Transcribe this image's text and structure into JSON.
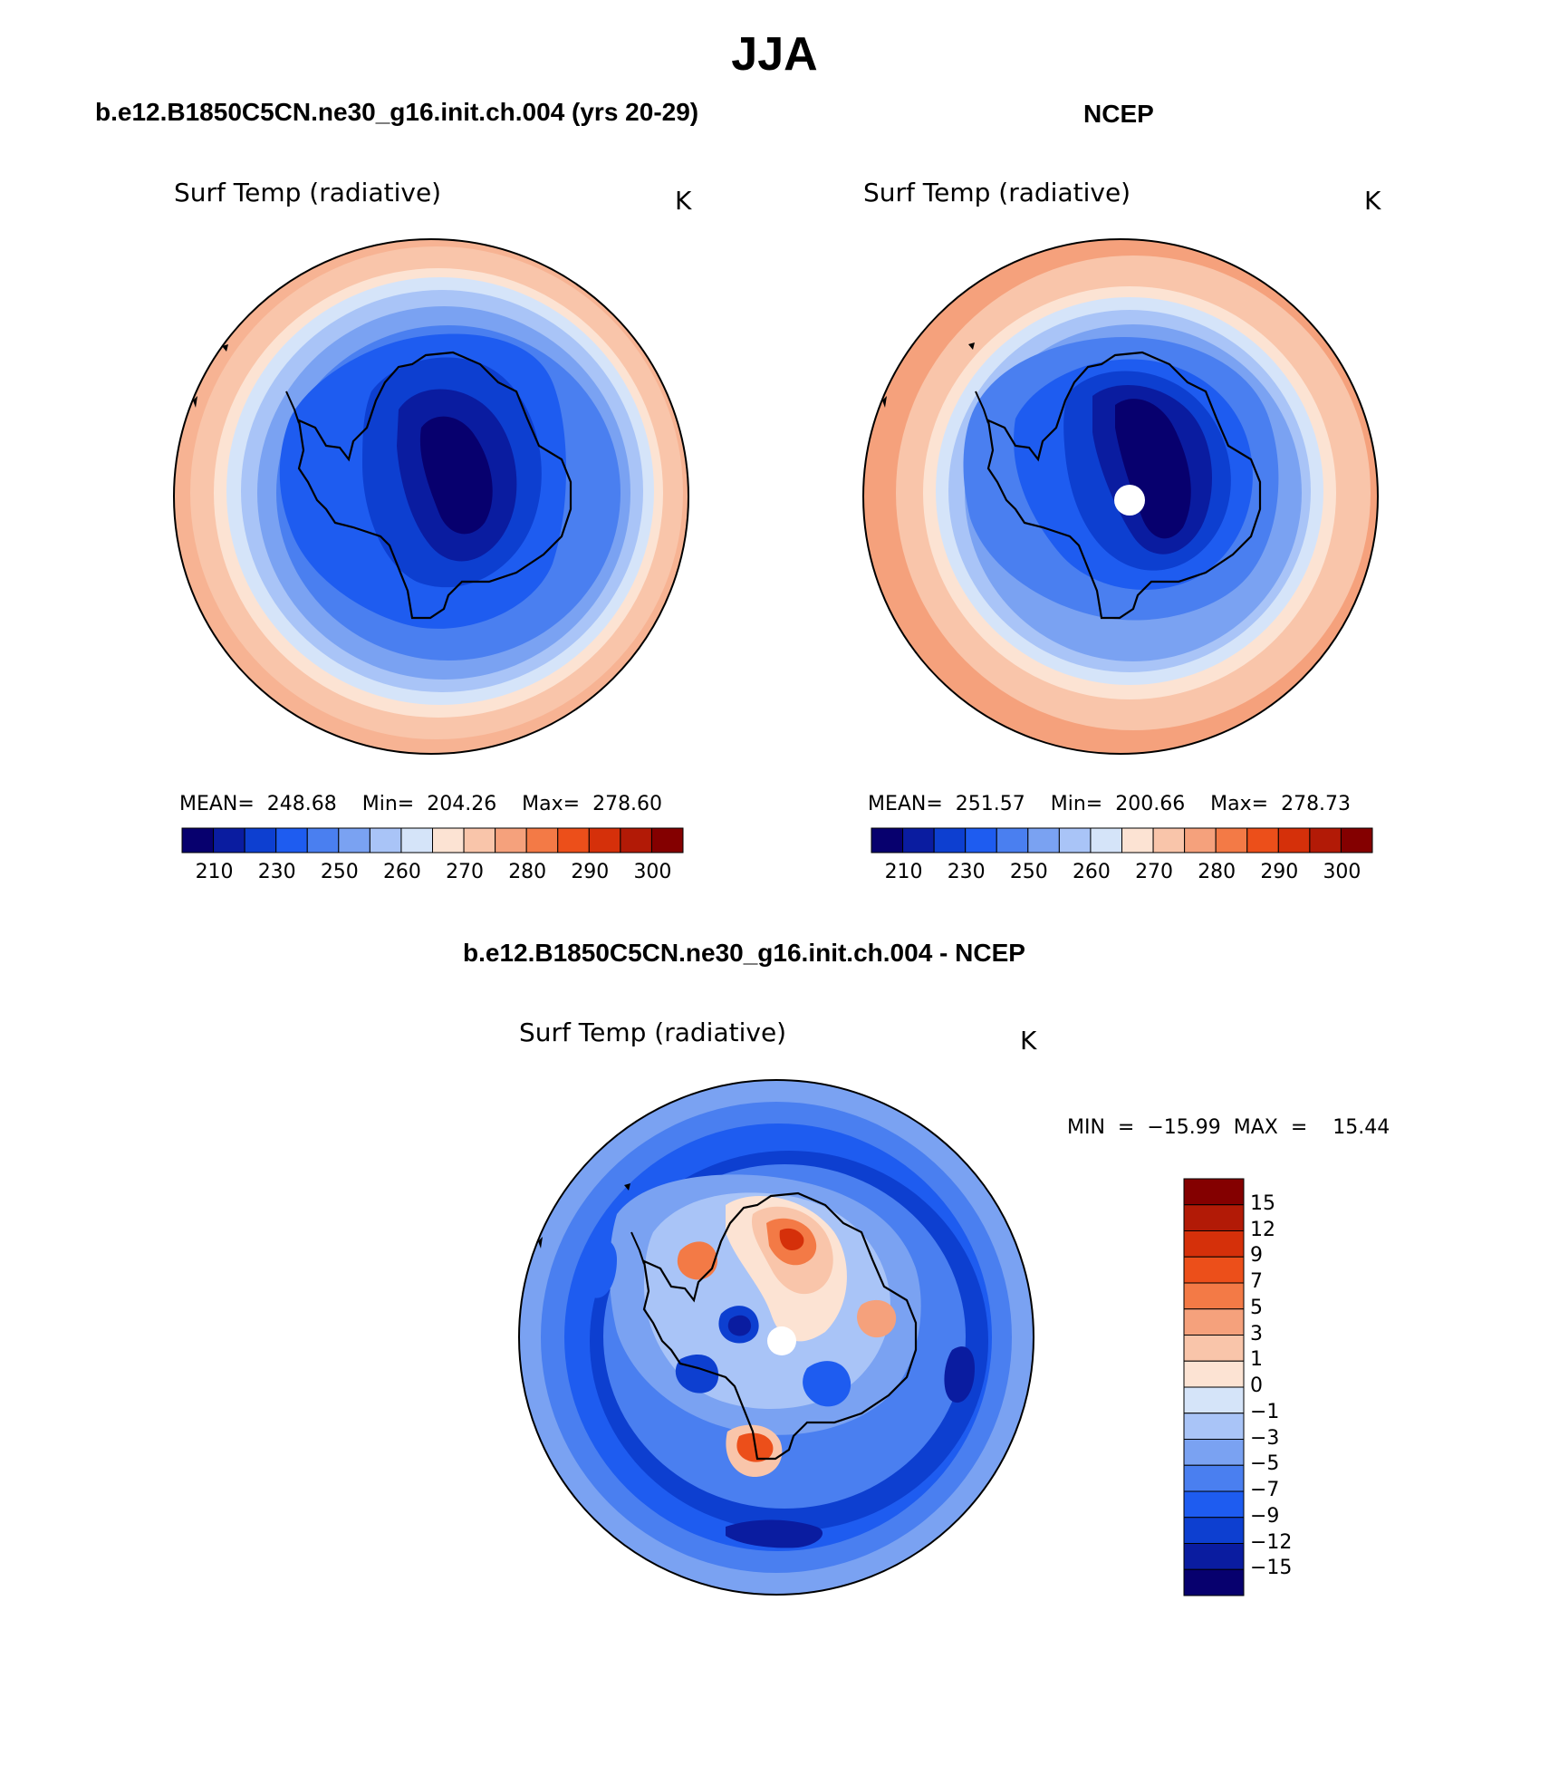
{
  "figure": {
    "season": "JJA"
  },
  "panels": [
    {
      "id": "model",
      "title": "b.e12.B1850C5CN.ne30_g16.init.ch.004 (yrs 20-29)",
      "variable": "Surf Temp (radiative)",
      "units": "K",
      "stats": "MEAN=  248.68    Min=  204.26    Max=  278.60",
      "polar_hole": false
    },
    {
      "id": "ncep",
      "title": "NCEP",
      "variable": "Surf Temp (radiative)",
      "units": "K",
      "stats": "MEAN=  251.57    Min=  200.66    Max=  278.73",
      "polar_hole": true
    },
    {
      "id": "diff",
      "title": "b.e12.B1850C5CN.ne30_g16.init.ch.004 - NCEP",
      "variable": "Surf Temp (radiative)",
      "units": "K",
      "stats": "MIN  =  −15.99  MAX  =    15.44",
      "polar_hole": true
    }
  ],
  "colorbar_abs": {
    "tick_labels": [
      "210",
      "230",
      "250",
      "260",
      "270",
      "280",
      "290",
      "300"
    ],
    "colors": [
      "#07006e",
      "#0a1ca0",
      "#0d3fd0",
      "#1e5cf0",
      "#4a7ff0",
      "#7aa2f2",
      "#a9c4f7",
      "#d5e4f9",
      "#fce3d3",
      "#f9c5aa",
      "#f5a17c",
      "#f37a46",
      "#ec4f1a",
      "#d5300a",
      "#b21a06",
      "#840000"
    ]
  },
  "colorbar_diff": {
    "tick_labels": [
      "15",
      "12",
      "9",
      "7",
      "5",
      "3",
      "1",
      "0",
      "−1",
      "−3",
      "−5",
      "−7",
      "−9",
      "−12",
      "−15"
    ],
    "colors": [
      "#840000",
      "#b21a06",
      "#d5300a",
      "#ec4f1a",
      "#f37a46",
      "#f5a17c",
      "#f9c5aa",
      "#fce3d3",
      "#d5e4f9",
      "#a9c4f7",
      "#7aa2f2",
      "#4a7ff0",
      "#1e5cf0",
      "#0d3fd0",
      "#0a1ca0",
      "#07006e"
    ]
  }
}
